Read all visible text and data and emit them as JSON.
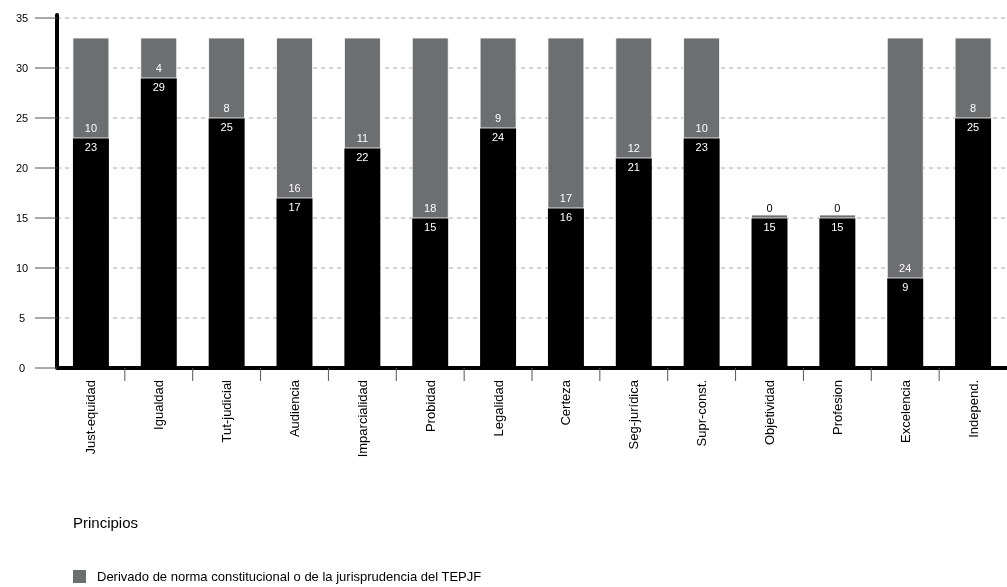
{
  "chart_data": {
    "type": "bar",
    "stacked": true,
    "xlabel": "Principios",
    "categories": [
      "Just-equidad",
      "Igualdad",
      "Tut-judicial",
      "Audiencia",
      "Imparcialidad",
      "Probidad",
      "Legalidad",
      "Certeza",
      "Seg-jurídica",
      "Supr-const.",
      "Objetividad",
      "Profesion",
      "Excelencia",
      "Independ."
    ],
    "series": [
      {
        "color": "#000000",
        "values": [
          23,
          29,
          25,
          17,
          22,
          15,
          24,
          16,
          21,
          23,
          15,
          15,
          9,
          25
        ]
      },
      {
        "name": "Derivado de norma constitucional o de la jurisprudencia del TEPJF",
        "color": "#6d6e70",
        "values": [
          10,
          4,
          8,
          16,
          11,
          18,
          9,
          17,
          12,
          10,
          0,
          0,
          24,
          8
        ]
      }
    ],
    "ylim": [
      0,
      35
    ],
    "yticks": [
      0,
      5,
      10,
      15,
      20,
      25,
      30,
      35
    ],
    "grid": "y",
    "legend": "bottom",
    "data_labels": true
  }
}
